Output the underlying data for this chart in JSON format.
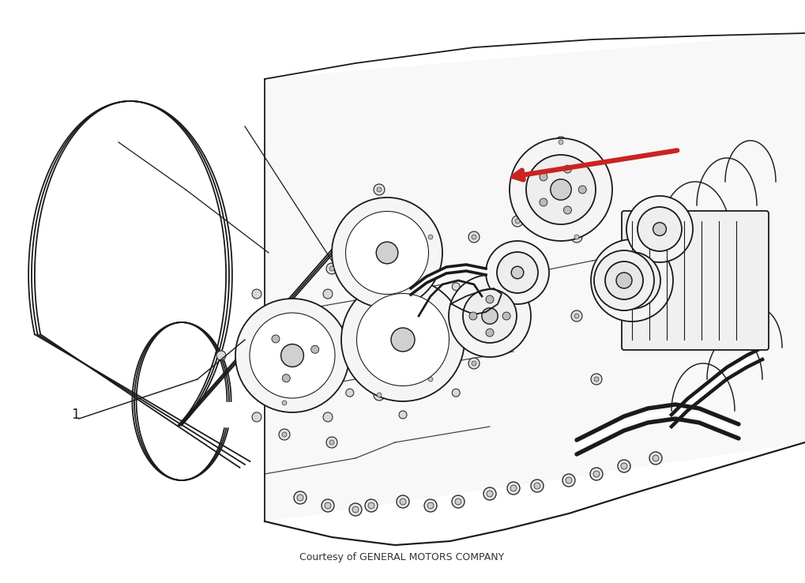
{
  "background_color": "#ffffff",
  "fig_width": 10.19,
  "fig_height": 7.38,
  "dpi": 100,
  "courtesy_text": "Courtesy of GENERAL MOTORS COMPANY",
  "courtesy_fontsize": 9,
  "courtesy_color": "#333333",
  "label_1_text": "1",
  "label_fontsize": 12,
  "arrow_color": "#cc2222",
  "line_color": "#1a1a1a",
  "line_width": 1.3,
  "belt_offsets": [
    0.0,
    0.013,
    0.026
  ]
}
